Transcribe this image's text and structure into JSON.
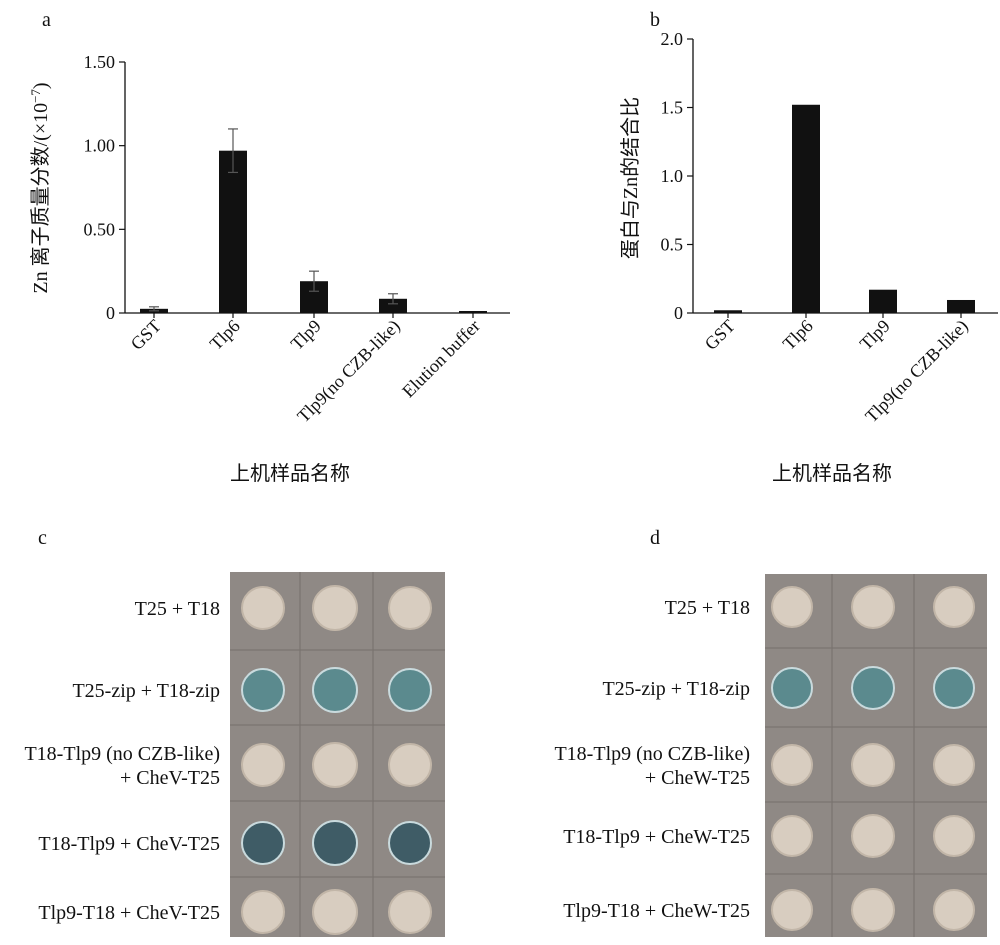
{
  "panels": {
    "a": {
      "letter": "a",
      "chart_data": {
        "type": "bar",
        "title": "",
        "xlabel": "上机样品名称",
        "ylabel": "Zn 离子质量分数/(×10",
        "ylabel_exp": "−7",
        "ylabel_tail": ")",
        "categories": [
          "GST",
          "Tlp6",
          "Tlp9",
          "Tlp9(no CZB-like)",
          "Elution buffer"
        ],
        "values": [
          0.025,
          0.97,
          0.19,
          0.085,
          0.012
        ],
        "errors": [
          0.012,
          0.13,
          0.06,
          0.03,
          0.0
        ],
        "ylim": [
          0,
          1.5
        ],
        "yticks": [
          0,
          0.5,
          1.0,
          1.5
        ],
        "ytick_labels": [
          "0",
          "0.50",
          "1.00",
          "1.50"
        ],
        "grid": false,
        "bar_color": "#111111"
      }
    },
    "b": {
      "letter": "b",
      "chart_data": {
        "type": "bar",
        "title": "",
        "xlabel": "上机样品名称",
        "ylabel": "蛋白与Zn的结合比",
        "categories": [
          "GST",
          "Tlp6",
          "Tlp9",
          "Tlp9(no CZB-like)"
        ],
        "values": [
          0.02,
          1.52,
          0.17,
          0.095
        ],
        "ylim": [
          0,
          2.0
        ],
        "yticks": [
          0,
          0.5,
          1.0,
          1.5,
          2.0
        ],
        "ytick_labels": [
          "0",
          "0.5",
          "1.0",
          "1.5",
          "2.0"
        ],
        "grid": false,
        "bar_color": "#111111"
      }
    },
    "c": {
      "letter": "c",
      "rows": [
        {
          "lines": [
            "T25 + T18"
          ],
          "color": "white"
        },
        {
          "lines": [
            "T25-zip + T18-zip"
          ],
          "color": "blue"
        },
        {
          "lines": [
            "T18-Tlp9 (no CZB-like)",
            "+ CheV-T25"
          ],
          "color": "white"
        },
        {
          "lines": [
            "T18-Tlp9 + CheV-T25"
          ],
          "color": "blue"
        },
        {
          "lines": [
            "Tlp9-T18 + CheV-T25"
          ],
          "color": "white"
        }
      ]
    },
    "d": {
      "letter": "d",
      "rows": [
        {
          "lines": [
            "T25 + T18"
          ],
          "color": "white"
        },
        {
          "lines": [
            "T25-zip + T18-zip"
          ],
          "color": "blue"
        },
        {
          "lines": [
            "T18-Tlp9 (no CZB-like)",
            "+ CheW-T25"
          ],
          "color": "white"
        },
        {
          "lines": [
            "T18-Tlp9 + CheW-T25"
          ],
          "color": "white"
        },
        {
          "lines": [
            "Tlp9-T18 + CheW-T25"
          ],
          "color": "white"
        }
      ]
    }
  },
  "colors": {
    "plate_bg": "#8f8985",
    "colony_white": "#d8cdc0",
    "colony_white_rim": "#c2b6a8",
    "colony_blue": "#5b8a8e",
    "colony_blue_rim": "#c9dadd",
    "colony_dark_blue": "#3f5c66",
    "grid_line": "#7a7470"
  }
}
